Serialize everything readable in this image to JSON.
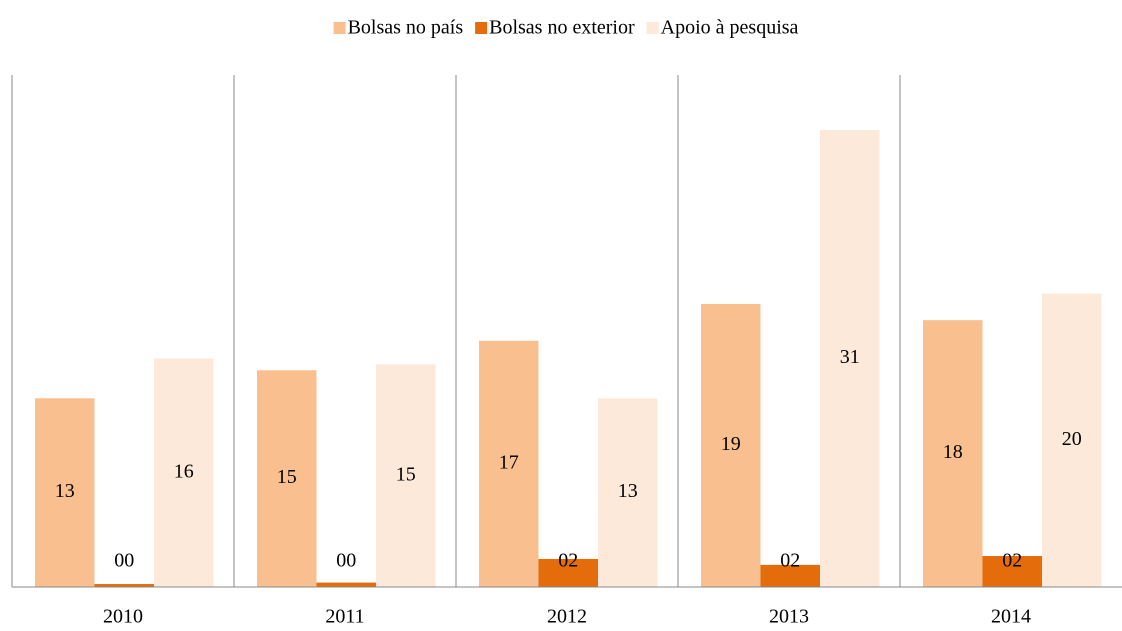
{
  "chart_data": {
    "type": "bar",
    "categories": [
      "2010",
      "2011",
      "2012",
      "2013",
      "2014"
    ],
    "series": [
      {
        "name": "Bolsas no país",
        "color": "#f9bf8f",
        "values": [
          12.8,
          14.7,
          16.7,
          19.2,
          18.1
        ],
        "value_labels": [
          "13",
          "15",
          "17",
          "19",
          "18"
        ]
      },
      {
        "name": "Bolsas no exterior",
        "color": "#e46c0a",
        "values": [
          0.2,
          0.3,
          1.9,
          1.5,
          2.1
        ],
        "value_labels": [
          "00",
          "00",
          "02",
          "02",
          "02"
        ]
      },
      {
        "name": "Apoio à pesquisa",
        "color": "#fde9d9",
        "values": [
          15.5,
          15.1,
          12.8,
          31,
          19.9
        ],
        "value_labels": [
          "16",
          "15",
          "13",
          "31",
          "20"
        ]
      }
    ]
  }
}
